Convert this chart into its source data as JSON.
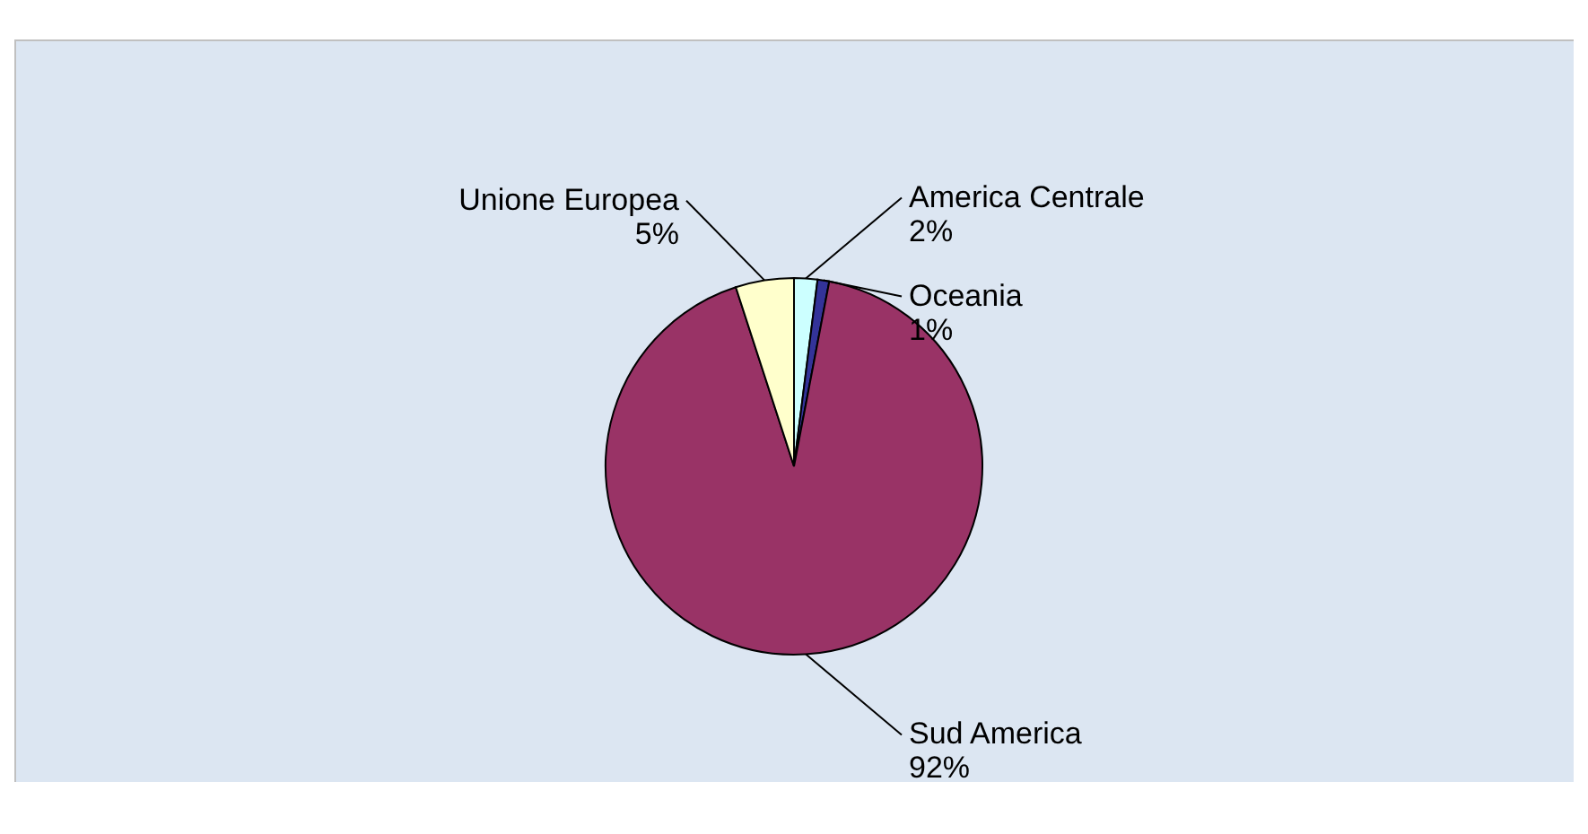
{
  "chart_data": {
    "type": "pie",
    "categories": [
      "America Centrale",
      "Oceania",
      "Sud America",
      "Unione Europea"
    ],
    "values": [
      2,
      1,
      92,
      5
    ],
    "colors": [
      "#ccffff",
      "#333399",
      "#993366",
      "#ffffcc"
    ],
    "value_labels": [
      "2%",
      "1%",
      "92%",
      "5%"
    ]
  }
}
